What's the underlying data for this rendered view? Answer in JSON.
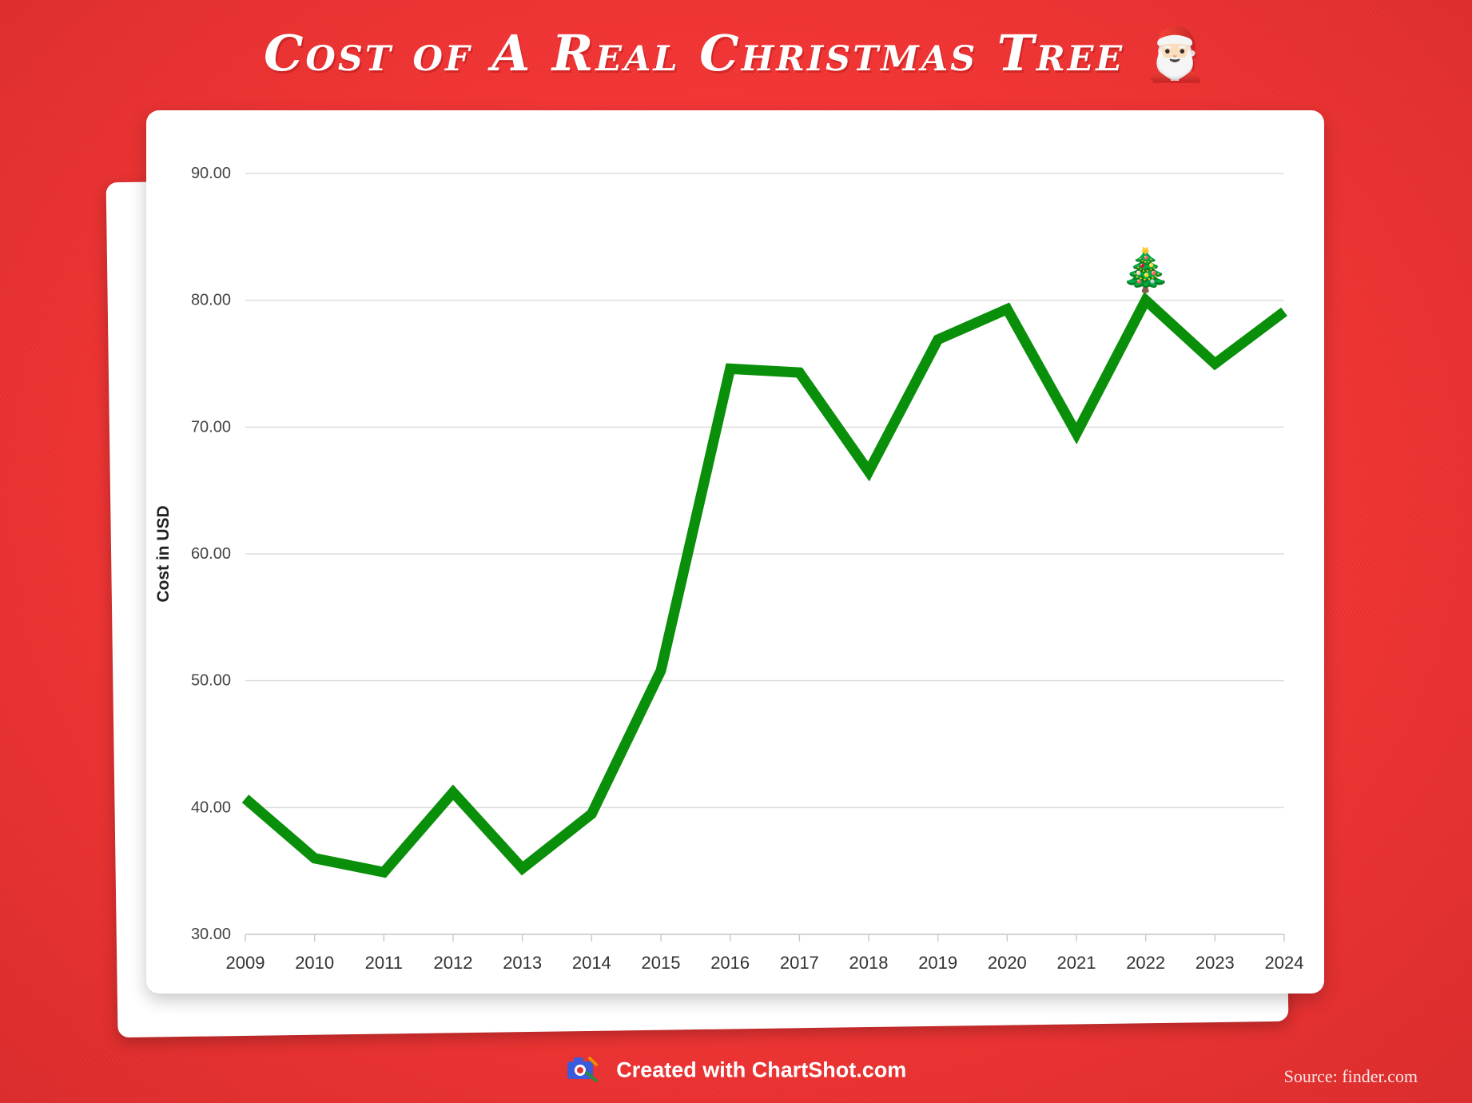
{
  "title": "Cost of A Real Christmas Tree",
  "title_emoji": "🎅🏻",
  "footer": {
    "credit": "Created with ChartShot.com"
  },
  "source": "Source: finder.com",
  "colors": {
    "background": "#f23232",
    "line": "#0a8f0a",
    "grid": "#dddddd"
  },
  "chart_data": {
    "type": "line",
    "title": "Cost of A Real Christmas Tree",
    "xlabel": "",
    "ylabel": "Cost in USD",
    "ylim": [
      30,
      90
    ],
    "yticks": [
      "30.00",
      "40.00",
      "50.00",
      "60.00",
      "70.00",
      "80.00",
      "90.00"
    ],
    "grid": true,
    "categories": [
      "2009",
      "2010",
      "2011",
      "2012",
      "2013",
      "2014",
      "2015",
      "2016",
      "2017",
      "2018",
      "2019",
      "2020",
      "2021",
      "2022",
      "2023",
      "2024"
    ],
    "series": [
      {
        "values": [
          40.7,
          36.0,
          34.9,
          41.2,
          35.2,
          39.5,
          50.8,
          74.6,
          74.3,
          66.5,
          76.9,
          79.3,
          69.5,
          80.0,
          75.0,
          79.1
        ]
      }
    ],
    "annotation": {
      "category": "2022",
      "icon": "christmas-tree-icon",
      "glyph": "🎄"
    }
  }
}
